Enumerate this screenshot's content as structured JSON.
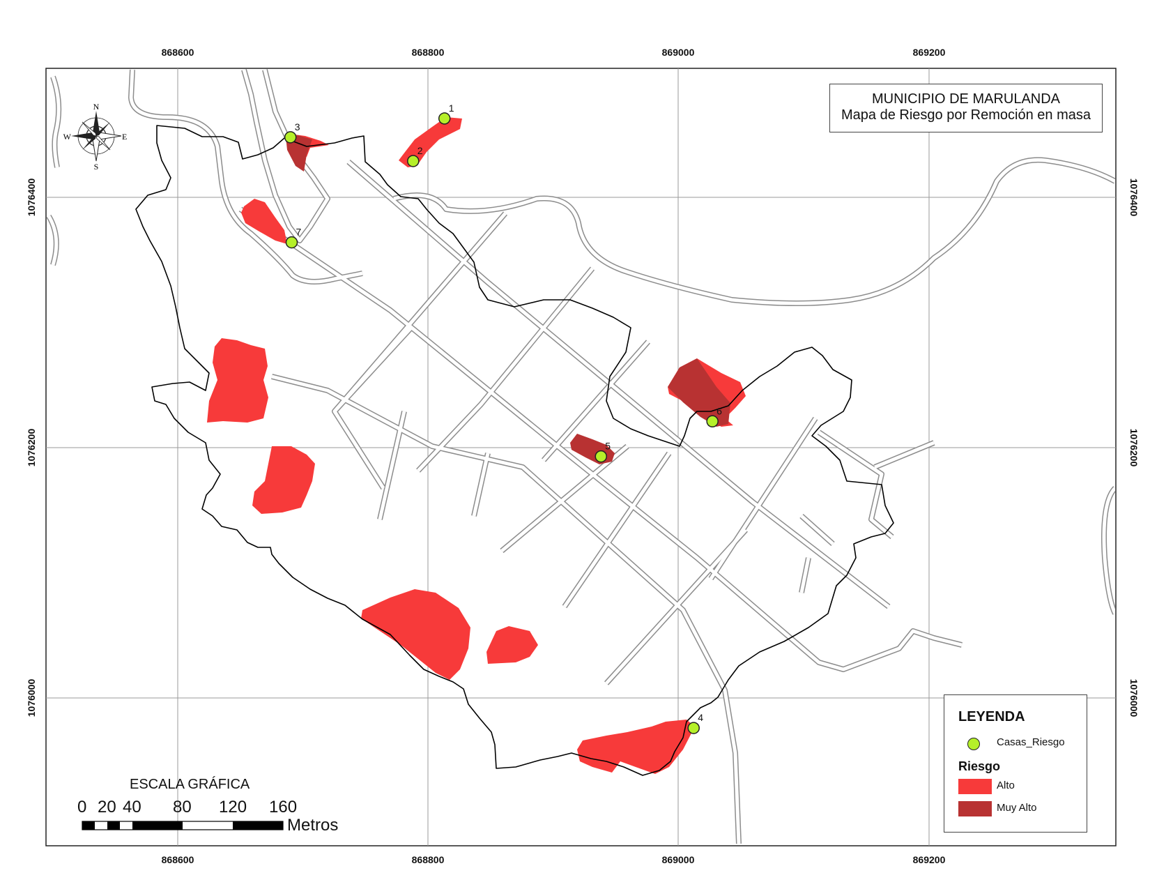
{
  "map": {
    "title": "MUNICIPIO DE MARULANDA",
    "subtitle": "Mapa de Riesgo por Remoción en masa",
    "x_ticks": [
      "868600",
      "868800",
      "869000",
      "869200"
    ],
    "y_ticks": [
      "1076400",
      "1076200",
      "1076000"
    ],
    "compass": {
      "n": "N",
      "s": "S",
      "e": "E",
      "w": "W"
    },
    "points": [
      {
        "label": "1",
        "x": 868813,
        "y": 1076463
      },
      {
        "label": "2",
        "x": 868788,
        "y": 1076429
      },
      {
        "label": "3",
        "x": 868690,
        "y": 1076448
      },
      {
        "label": "4",
        "x": 869012,
        "y": 1075976
      },
      {
        "label": "5",
        "x": 868938,
        "y": 1076193
      },
      {
        "label": "6",
        "x": 869027,
        "y": 1076221
      },
      {
        "label": "7",
        "x": 868691,
        "y": 1076364
      }
    ],
    "colors": {
      "alto": "#f73a3a",
      "muy_alto": "#b83232",
      "point": "#b5f02a",
      "road": "#8c8c8c",
      "boundary": "#000000"
    }
  },
  "legend": {
    "title": "LEYENDA",
    "point_label": "Casas_Riesgo",
    "risk_title": "Riesgo",
    "items": [
      {
        "label": "Alto",
        "color": "#f73a3a"
      },
      {
        "label": "Muy Alto",
        "color": "#b83232"
      }
    ]
  },
  "scale": {
    "title": "ESCALA GRÁFICA",
    "labels": [
      "0",
      "20",
      "40",
      "80",
      "120",
      "160"
    ],
    "unit": "Metros"
  }
}
